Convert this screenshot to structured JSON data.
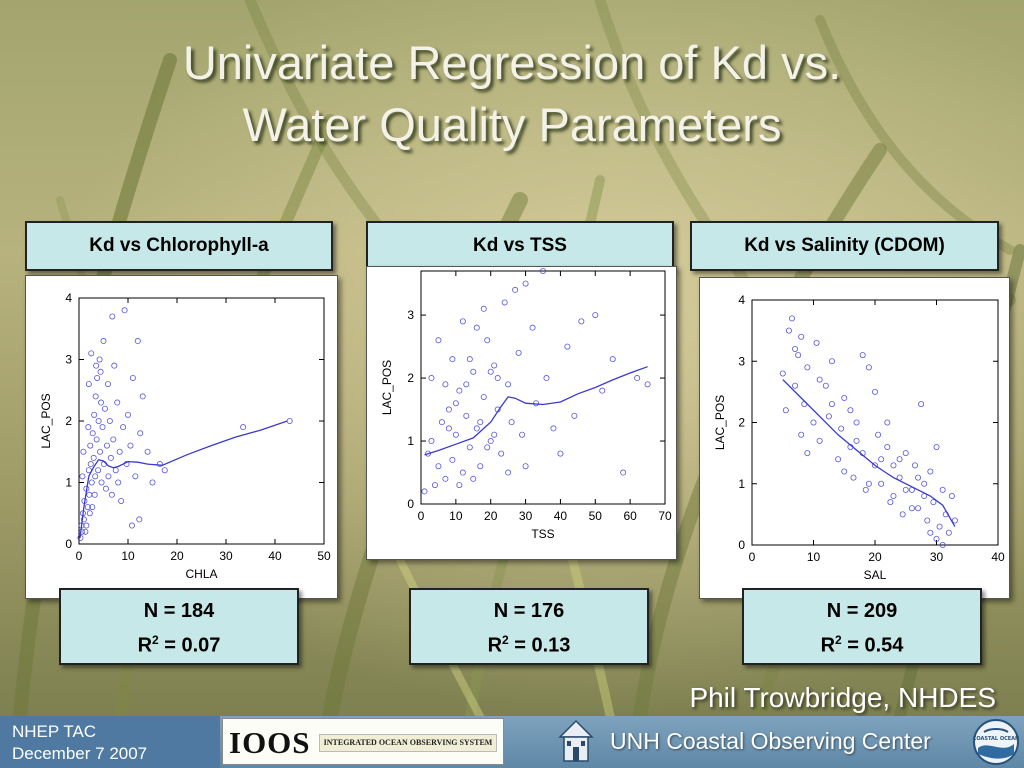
{
  "slide": {
    "title_line1": "Univariate Regression of Kd vs.",
    "title_line2": "Water Quality Parameters",
    "credit": "Phil Trowbridge, NHDES"
  },
  "panels": [
    {
      "header": "Kd vs Chlorophyll-a",
      "n_text": "N = 184",
      "r2_value": " = 0.07"
    },
    {
      "header": "Kd vs TSS",
      "n_text": "N = 176",
      "r2_value": " = 0.13"
    },
    {
      "header": "Kd vs Salinity (CDOM)",
      "n_text": "N = 209",
      "r2_value": " = 0.54"
    }
  ],
  "footer": {
    "event": "NHEP TAC",
    "date": "December 7 2007",
    "ioos_mark": "IOOS",
    "ioos_text": "INTEGRATED OCEAN OBSERVING SYSTEM",
    "unh_text": "UNH Coastal Observing Center",
    "coos_logo_text": "COASTAL OCEAN"
  },
  "colors": {
    "title": "#f4f2e8",
    "box_fill": "#c7e8e8",
    "series": "#3a3ad0",
    "footer": "#5f87a6"
  },
  "chart_data": [
    {
      "type": "scatter",
      "xlabel": "CHLA",
      "ylabel": "LAC_POS",
      "xlim": [
        0,
        50
      ],
      "ylim": [
        0,
        4
      ],
      "xticks": [
        0,
        10,
        20,
        30,
        40,
        50
      ],
      "yticks": [
        0,
        1,
        2,
        3,
        4
      ],
      "points": [
        [
          0.3,
          0.1
        ],
        [
          0.5,
          0.3
        ],
        [
          0.6,
          0.2
        ],
        [
          0.8,
          0.5
        ],
        [
          1.0,
          0.4
        ],
        [
          1.1,
          0.7
        ],
        [
          1.3,
          0.2
        ],
        [
          1.5,
          0.9
        ],
        [
          0.7,
          1.1
        ],
        [
          1.8,
          0.6
        ],
        [
          2.0,
          1.2
        ],
        [
          2.1,
          0.8
        ],
        [
          0.9,
          1.5
        ],
        [
          2.3,
          1.6
        ],
        [
          2.4,
          1.3
        ],
        [
          2.6,
          1.0
        ],
        [
          2.8,
          1.8
        ],
        [
          3.0,
          1.4
        ],
        [
          3.1,
          2.1
        ],
        [
          3.3,
          1.1
        ],
        [
          3.4,
          2.4
        ],
        [
          3.6,
          1.7
        ],
        [
          3.7,
          2.7
        ],
        [
          3.9,
          1.2
        ],
        [
          4.0,
          2.0
        ],
        [
          4.2,
          3.0
        ],
        [
          4.3,
          1.5
        ],
        [
          4.5,
          2.3
        ],
        [
          4.6,
          1.0
        ],
        [
          4.8,
          1.9
        ],
        [
          5.0,
          3.3
        ],
        [
          5.1,
          1.3
        ],
        [
          5.3,
          2.2
        ],
        [
          5.5,
          0.9
        ],
        [
          5.7,
          1.6
        ],
        [
          5.9,
          2.6
        ],
        [
          6.0,
          1.1
        ],
        [
          6.3,
          2.0
        ],
        [
          6.5,
          1.4
        ],
        [
          6.7,
          0.8
        ],
        [
          7.0,
          1.7
        ],
        [
          7.2,
          2.9
        ],
        [
          7.5,
          1.2
        ],
        [
          7.8,
          2.3
        ],
        [
          8.0,
          1.0
        ],
        [
          8.3,
          1.5
        ],
        [
          8.6,
          0.7
        ],
        [
          9.0,
          1.9
        ],
        [
          9.3,
          3.8
        ],
        [
          9.7,
          1.3
        ],
        [
          10.0,
          2.1
        ],
        [
          10.5,
          1.6
        ],
        [
          11.0,
          2.7
        ],
        [
          11.5,
          1.1
        ],
        [
          12.0,
          3.3
        ],
        [
          12.5,
          1.8
        ],
        [
          13.0,
          2.4
        ],
        [
          14.0,
          1.5
        ],
        [
          15.0,
          1.0
        ],
        [
          16.5,
          1.3
        ],
        [
          17.5,
          1.2
        ],
        [
          2.0,
          2.6
        ],
        [
          2.5,
          3.1
        ],
        [
          3.5,
          2.9
        ],
        [
          1.5,
          0.3
        ],
        [
          2.2,
          0.5
        ],
        [
          2.7,
          0.6
        ],
        [
          3.2,
          0.8
        ],
        [
          1.9,
          1.9
        ],
        [
          4.4,
          2.8
        ],
        [
          6.8,
          3.7
        ],
        [
          10.8,
          0.3
        ],
        [
          12.3,
          0.4
        ],
        [
          33.5,
          1.9
        ],
        [
          43.0,
          2.0
        ]
      ],
      "fit": [
        [
          0.2,
          0.1
        ],
        [
          1,
          0.6
        ],
        [
          2,
          1.1
        ],
        [
          3,
          1.25
        ],
        [
          4,
          1.37
        ],
        [
          5,
          1.35
        ],
        [
          6,
          1.27
        ],
        [
          7,
          1.24
        ],
        [
          8,
          1.26
        ],
        [
          10,
          1.34
        ],
        [
          12,
          1.33
        ],
        [
          14,
          1.3
        ],
        [
          17,
          1.28
        ],
        [
          22,
          1.45
        ],
        [
          27,
          1.6
        ],
        [
          32,
          1.74
        ],
        [
          37,
          1.85
        ],
        [
          42.5,
          2.0
        ]
      ]
    },
    {
      "type": "scatter",
      "xlabel": "TSS",
      "ylabel": "LAC_POS",
      "xlim": [
        0,
        70
      ],
      "ylim": [
        0,
        3.7
      ],
      "xticks": [
        0,
        10,
        20,
        30,
        40,
        50,
        60,
        70
      ],
      "yticks": [
        0,
        1,
        2,
        3
      ],
      "points": [
        [
          1,
          0.2
        ],
        [
          2,
          0.8
        ],
        [
          3,
          1.0
        ],
        [
          4,
          0.3
        ],
        [
          5,
          0.6
        ],
        [
          6,
          1.3
        ],
        [
          7,
          0.4
        ],
        [
          8,
          1.5
        ],
        [
          9,
          0.7
        ],
        [
          10,
          1.1
        ],
        [
          11,
          1.8
        ],
        [
          12,
          0.5
        ],
        [
          13,
          1.4
        ],
        [
          14,
          0.9
        ],
        [
          15,
          2.1
        ],
        [
          16,
          1.2
        ],
        [
          17,
          0.6
        ],
        [
          18,
          1.7
        ],
        [
          19,
          2.6
        ],
        [
          20,
          1.0
        ],
        [
          21,
          2.2
        ],
        [
          22,
          1.5
        ],
        [
          23,
          0.8
        ],
        [
          24,
          3.2
        ],
        [
          25,
          1.9
        ],
        [
          26,
          1.3
        ],
        [
          27,
          3.4
        ],
        [
          28,
          2.4
        ],
        [
          29,
          1.1
        ],
        [
          30,
          3.5
        ],
        [
          32,
          2.8
        ],
        [
          33,
          1.6
        ],
        [
          35,
          3.7
        ],
        [
          36,
          2.0
        ],
        [
          38,
          1.2
        ],
        [
          40,
          0.8
        ],
        [
          42,
          2.5
        ],
        [
          44,
          1.4
        ],
        [
          46,
          2.9
        ],
        [
          50,
          3.0
        ],
        [
          52,
          1.8
        ],
        [
          55,
          2.3
        ],
        [
          58,
          0.5
        ],
        [
          62,
          2.0
        ],
        [
          65,
          1.9
        ],
        [
          3,
          2.0
        ],
        [
          5,
          2.6
        ],
        [
          7,
          1.9
        ],
        [
          9,
          2.3
        ],
        [
          12,
          2.9
        ],
        [
          14,
          2.3
        ],
        [
          16,
          2.8
        ],
        [
          18,
          3.1
        ],
        [
          20,
          2.1
        ],
        [
          22,
          2.0
        ],
        [
          11,
          0.3
        ],
        [
          15,
          0.4
        ],
        [
          19,
          0.9
        ],
        [
          25,
          0.5
        ],
        [
          30,
          0.6
        ],
        [
          8,
          1.2
        ],
        [
          10,
          1.6
        ],
        [
          13,
          1.9
        ],
        [
          17,
          1.3
        ],
        [
          21,
          1.1
        ]
      ],
      "fit": [
        [
          1,
          0.78
        ],
        [
          5,
          0.85
        ],
        [
          10,
          0.95
        ],
        [
          15,
          1.05
        ],
        [
          20,
          1.3
        ],
        [
          23,
          1.55
        ],
        [
          25,
          1.7
        ],
        [
          27,
          1.68
        ],
        [
          30,
          1.6
        ],
        [
          35,
          1.58
        ],
        [
          40,
          1.62
        ],
        [
          45,
          1.75
        ],
        [
          50,
          1.85
        ],
        [
          55,
          1.97
        ],
        [
          60,
          2.08
        ],
        [
          65,
          2.18
        ]
      ]
    },
    {
      "type": "scatter",
      "xlabel": "SAL",
      "ylabel": "LAC_POS",
      "xlim": [
        0,
        40
      ],
      "ylim": [
        0,
        4
      ],
      "xticks": [
        0,
        10,
        20,
        30,
        40
      ],
      "yticks": [
        0,
        1,
        2,
        3,
        4
      ],
      "points": [
        [
          5,
          2.8
        ],
        [
          5.5,
          2.2
        ],
        [
          6,
          3.5
        ],
        [
          6.5,
          3.7
        ],
        [
          7,
          2.6
        ],
        [
          7.5,
          3.1
        ],
        [
          8,
          1.8
        ],
        [
          8.5,
          2.3
        ],
        [
          9,
          1.5
        ],
        [
          10,
          2.0
        ],
        [
          10.5,
          3.3
        ],
        [
          11,
          1.7
        ],
        [
          12,
          2.6
        ],
        [
          12.5,
          2.1
        ],
        [
          13,
          3.0
        ],
        [
          14,
          1.4
        ],
        [
          14.5,
          1.9
        ],
        [
          15,
          2.4
        ],
        [
          16,
          1.6
        ],
        [
          16.5,
          1.1
        ],
        [
          17,
          2.0
        ],
        [
          18,
          1.5
        ],
        [
          18.5,
          0.9
        ],
        [
          19,
          2.9
        ],
        [
          20,
          1.3
        ],
        [
          20.5,
          1.8
        ],
        [
          21,
          1.0
        ],
        [
          22,
          1.6
        ],
        [
          22.5,
          0.7
        ],
        [
          23,
          1.3
        ],
        [
          24,
          1.1
        ],
        [
          24.5,
          0.5
        ],
        [
          25,
          1.5
        ],
        [
          26,
          0.9
        ],
        [
          26.5,
          1.3
        ],
        [
          27,
          0.6
        ],
        [
          27.5,
          2.3
        ],
        [
          28,
          1.0
        ],
        [
          28.5,
          0.4
        ],
        [
          29,
          1.2
        ],
        [
          29.5,
          0.7
        ],
        [
          30,
          1.6
        ],
        [
          30.5,
          0.3
        ],
        [
          31,
          0.9
        ],
        [
          31.5,
          0.5
        ],
        [
          32,
          0.2
        ],
        [
          32.5,
          0.8
        ],
        [
          33,
          0.4
        ],
        [
          30,
          0.1
        ],
        [
          31,
          0.0
        ],
        [
          29,
          0.2
        ],
        [
          28,
          0.8
        ],
        [
          27,
          1.1
        ],
        [
          26,
          0.6
        ],
        [
          25,
          0.9
        ],
        [
          24,
          1.4
        ],
        [
          23,
          0.8
        ],
        [
          22,
          2.0
        ],
        [
          21,
          1.4
        ],
        [
          20,
          2.5
        ],
        [
          19,
          1.0
        ],
        [
          18,
          3.1
        ],
        [
          17,
          1.7
        ],
        [
          16,
          2.2
        ],
        [
          15,
          1.2
        ],
        [
          13,
          2.3
        ],
        [
          11,
          2.7
        ],
        [
          9,
          2.9
        ],
        [
          8,
          3.4
        ],
        [
          7,
          3.2
        ]
      ],
      "fit": [
        [
          5,
          2.7
        ],
        [
          8,
          2.4
        ],
        [
          11,
          2.1
        ],
        [
          14,
          1.8
        ],
        [
          17,
          1.55
        ],
        [
          20,
          1.3
        ],
        [
          23,
          1.1
        ],
        [
          26,
          0.95
        ],
        [
          29,
          0.8
        ],
        [
          31,
          0.65
        ],
        [
          33,
          0.3
        ]
      ]
    }
  ]
}
